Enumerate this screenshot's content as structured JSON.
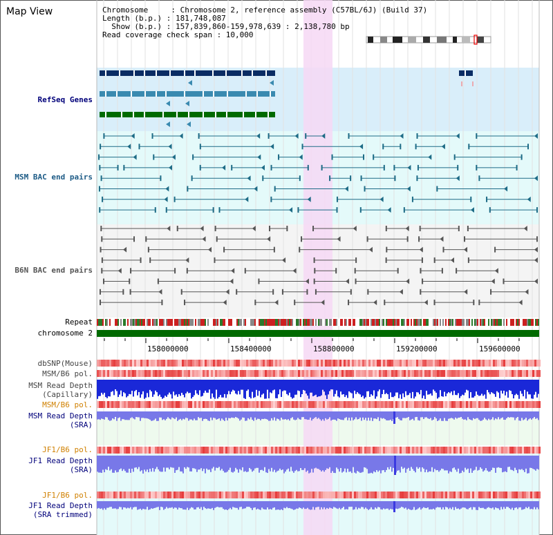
{
  "title": "Map View",
  "info": {
    "chromosome": "Chromosome     : Chromosome 2, reference assembly (C57BL/6J) (Build 37)",
    "length": "Length (b.p.) : 181,748,087",
    "show": "  Show (b.p.) : 157,839,860-159,978,639 : 2,138,780 bp",
    "coverage": "Read coverage check span : 10,000"
  },
  "tracks": {
    "refseq": "RefSeq Genes",
    "msm_bac": "MSM BAC end pairs",
    "b6n_bac": "B6N BAC end pairs",
    "repeat": "Repeat",
    "chromosome": "chromosome 2",
    "dbsnp": "dbSNP(Mouse)",
    "msm_b6_pol_1": "MSM/B6 pol.",
    "msm_read_depth_cap_1": "MSM Read Depth",
    "msm_read_depth_cap_2": "(Capillary)",
    "msm_b6_pol_2": "MSM/B6 pol.",
    "msm_read_depth_sra_1": "MSM Read Depth",
    "msm_read_depth_sra_2": "(SRA)",
    "jf1_b6_pol_1": "JF1/B6 pol.",
    "jf1_read_depth_sra_1": "JF1 Read Depth",
    "jf1_read_depth_sra_2": "(SRA)",
    "jf1_b6_pol_2": "JF1/B6 pol.",
    "jf1_read_depth_trim_1": "JF1 Read Depth",
    "jf1_read_depth_trim_2": "(SRA trimmed)"
  },
  "axis_ticks": [
    "158000000",
    "158400000",
    "158800000",
    "159200000",
    "159600000"
  ],
  "colors": {
    "refseq_bg": "#d9eefa",
    "bac_bg": "#e4fafa",
    "highlight": "#f6d8f4",
    "gene_dark": "#0a2c64",
    "gene_mid": "#3a8ab0",
    "gene_green": "#006a00",
    "msm_pair": "#1d6b86",
    "b6n_pair": "#555555",
    "chromosome_bar": "#006a00",
    "pol_red": "#e03030",
    "depth_blue": "#1a28d8",
    "depth_light": "#7878e8",
    "label_blue": "#00007a",
    "label_orange": "#d08000"
  }
}
